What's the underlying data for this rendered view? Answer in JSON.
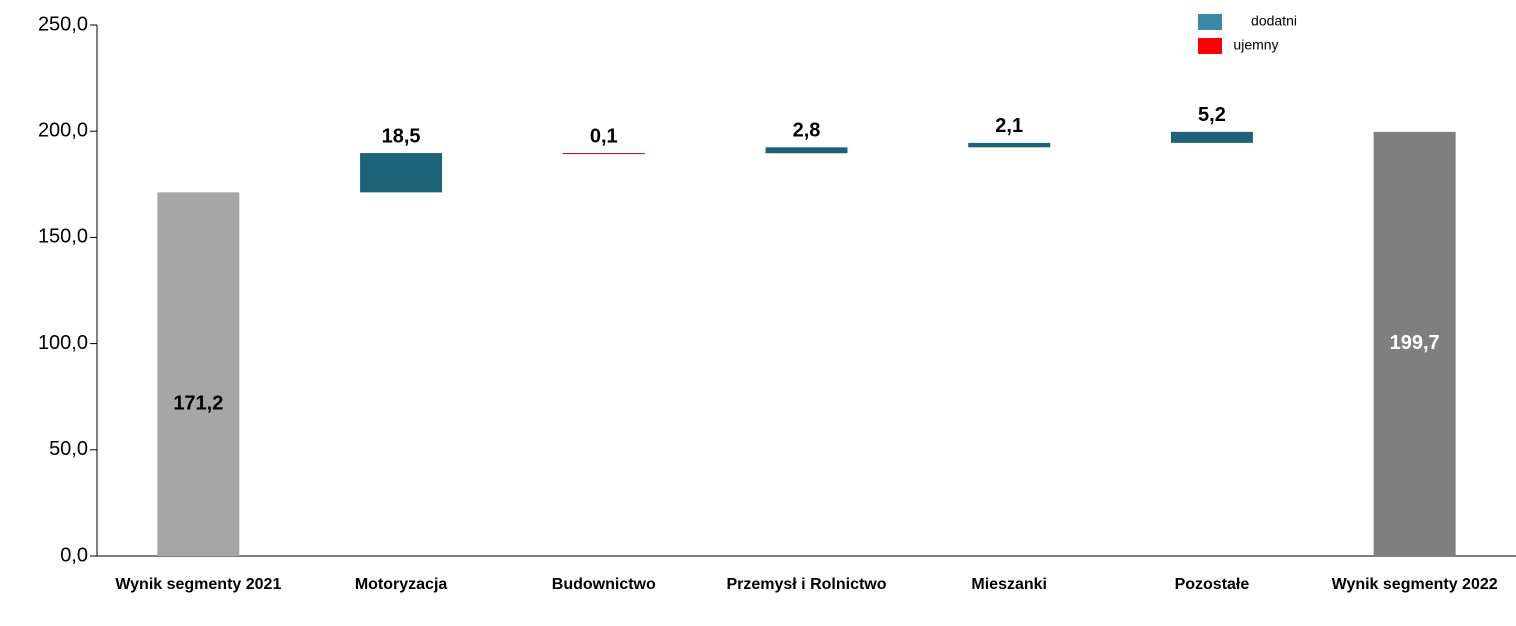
{
  "chart_data": {
    "type": "waterfall",
    "categories": [
      "Wynik segmenty 2021",
      "Motoryzacja",
      "Budownictwo",
      "Przemysł i Rolnictwo",
      "Mieszanki",
      "Pozostałe",
      "Wynik segmenty 2022"
    ],
    "measures": [
      "total",
      "relative",
      "relative",
      "relative",
      "relative",
      "relative",
      "total"
    ],
    "values": [
      171.2,
      18.5,
      -0.1,
      2.8,
      2.1,
      5.2,
      199.7
    ],
    "value_labels": [
      "171,2",
      "18,5",
      "0,1",
      "2,8",
      "2,1",
      "5,2",
      "199,7"
    ],
    "total_colors": [
      "#a6a6a6",
      "#7f7f7f"
    ],
    "series": [
      {
        "name": "dodatni",
        "color": "#1c6378",
        "legend_color": "#3a88a4"
      },
      {
        "name": "ujemny",
        "color": "#c00000",
        "legend_color": "#ff0000"
      }
    ],
    "ylim": [
      0,
      250
    ],
    "yticks": [
      {
        "value": 0,
        "label": "0,0"
      },
      {
        "value": 50,
        "label": "50,0"
      },
      {
        "value": 100,
        "label": "100,0"
      },
      {
        "value": 150,
        "label": "150,0"
      },
      {
        "value": 200,
        "label": "200,0"
      },
      {
        "value": 250,
        "label": "250,0"
      }
    ]
  }
}
